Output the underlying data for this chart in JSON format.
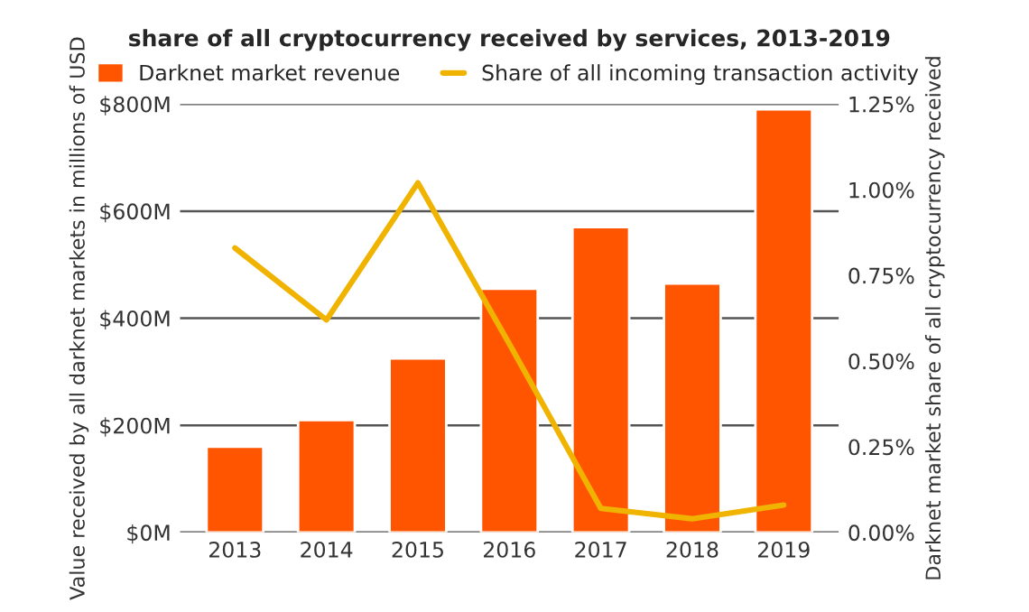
{
  "chart_data": {
    "type": "bar",
    "title": "share of all cryptocurrency received by services, 2013-2019",
    "categories": [
      "2013",
      "2014",
      "2015",
      "2016",
      "2017",
      "2018",
      "2019"
    ],
    "series": [
      {
        "name": "Darknet market revenue",
        "color": "#ff5500",
        "values": [
          160,
          210,
          325,
          455,
          570,
          465,
          790
        ]
      },
      {
        "name": "Share of all incoming transaction activity",
        "type": "line",
        "axis": "y2",
        "color": "#f0b400",
        "values": [
          0.83,
          0.62,
          1.02,
          0.55,
          0.07,
          0.04,
          0.08
        ]
      }
    ],
    "ylabel": "Value received by all darknet markets in millions of USD",
    "y2label": "Darknet market share of all cryptocurrency received",
    "ylim": [
      0,
      800
    ],
    "yticks": [
      {
        "value": 0,
        "label": "$0M"
      },
      {
        "value": 200,
        "label": "$200M"
      },
      {
        "value": 400,
        "label": "$400M"
      },
      {
        "value": 600,
        "label": "$600M"
      },
      {
        "value": 800,
        "label": "$800M"
      }
    ],
    "y2lim": [
      0,
      1.25
    ],
    "y2ticks": [
      {
        "value": 0,
        "label": "0.00%"
      },
      {
        "value": 0.25,
        "label": "0.25%"
      },
      {
        "value": 0.5,
        "label": "0.50%"
      },
      {
        "value": 0.75,
        "label": "0.75%"
      },
      {
        "value": 1.0,
        "label": "1.00%"
      },
      {
        "value": 1.25,
        "label": "1.25%"
      }
    ],
    "grid": "y",
    "legend": "top",
    "marker": "none",
    "line_style": "solid"
  }
}
